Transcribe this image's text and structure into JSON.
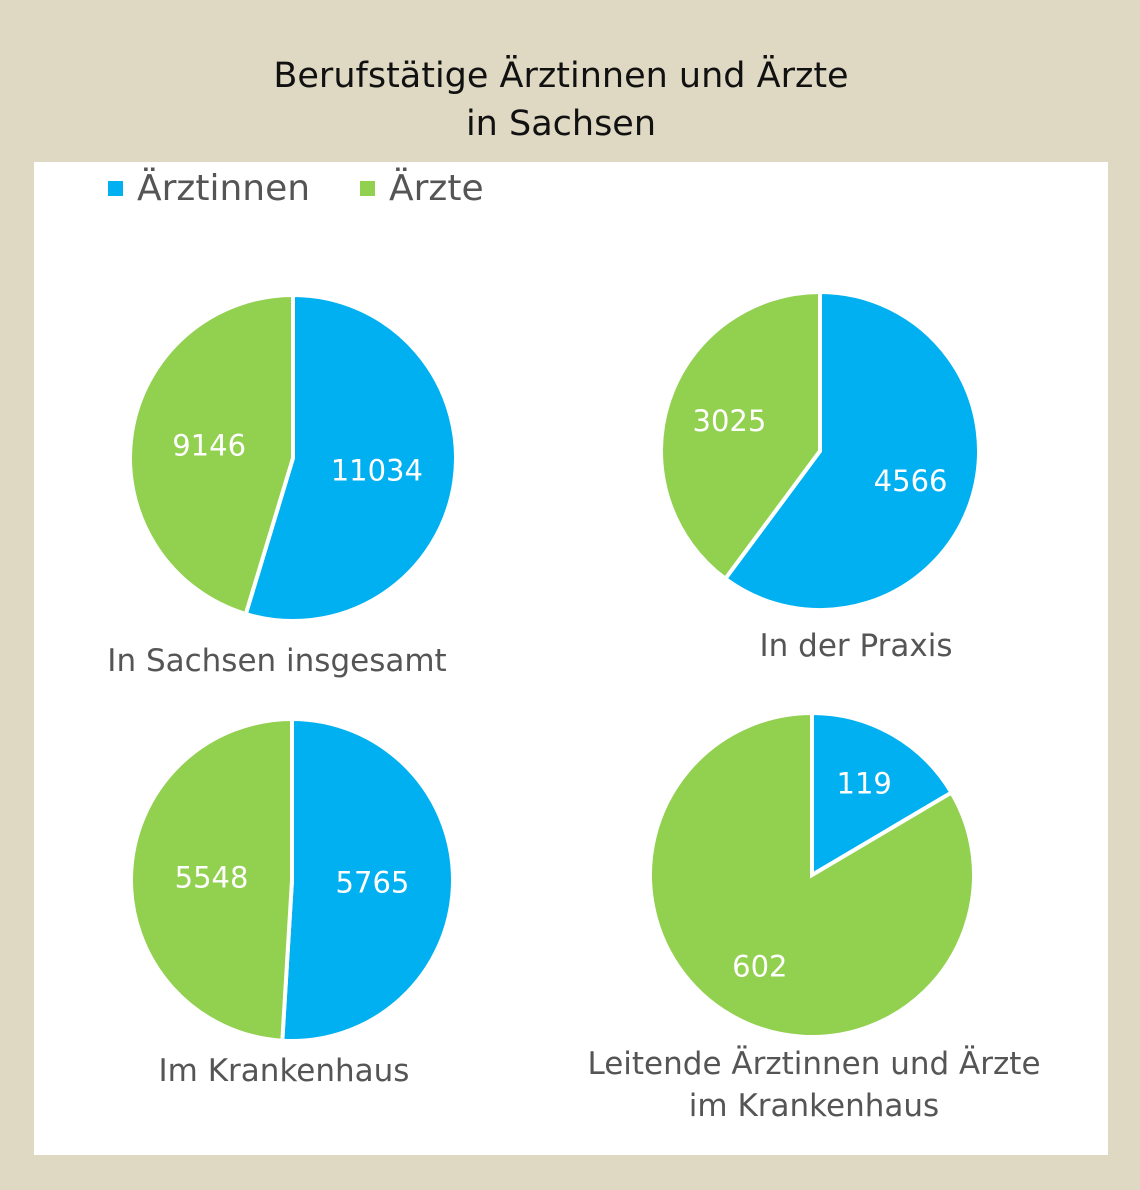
{
  "title_line1": "Berufstätige Ärztinnen und Ärzte",
  "title_line2": "in Sachsen",
  "colors": {
    "aerztinnen": "#00b0f0",
    "aerzte": "#92d050",
    "background": "#dfd9c3"
  },
  "chart_data": {
    "type": "pie",
    "title": "Berufstätige Ärztinnen und Ärzte in Sachsen",
    "legend": [
      "Ärztinnen",
      "Ärzte"
    ],
    "legend_position": "top-left",
    "charts": [
      {
        "caption": "In Sachsen insgesamt",
        "values": [
          11034,
          9146
        ],
        "labels": [
          "11034",
          "9146"
        ]
      },
      {
        "caption": "In der Praxis",
        "values": [
          4566,
          3025
        ],
        "labels": [
          "4566",
          "3025"
        ]
      },
      {
        "caption": "Im Krankenhaus",
        "values": [
          5765,
          5548
        ],
        "labels": [
          "5765",
          "5548"
        ]
      },
      {
        "caption": "Leitende Ärztinnen und Ärzte im Krankenhaus",
        "values": [
          119,
          602
        ],
        "labels": [
          "119",
          "602"
        ]
      }
    ]
  }
}
